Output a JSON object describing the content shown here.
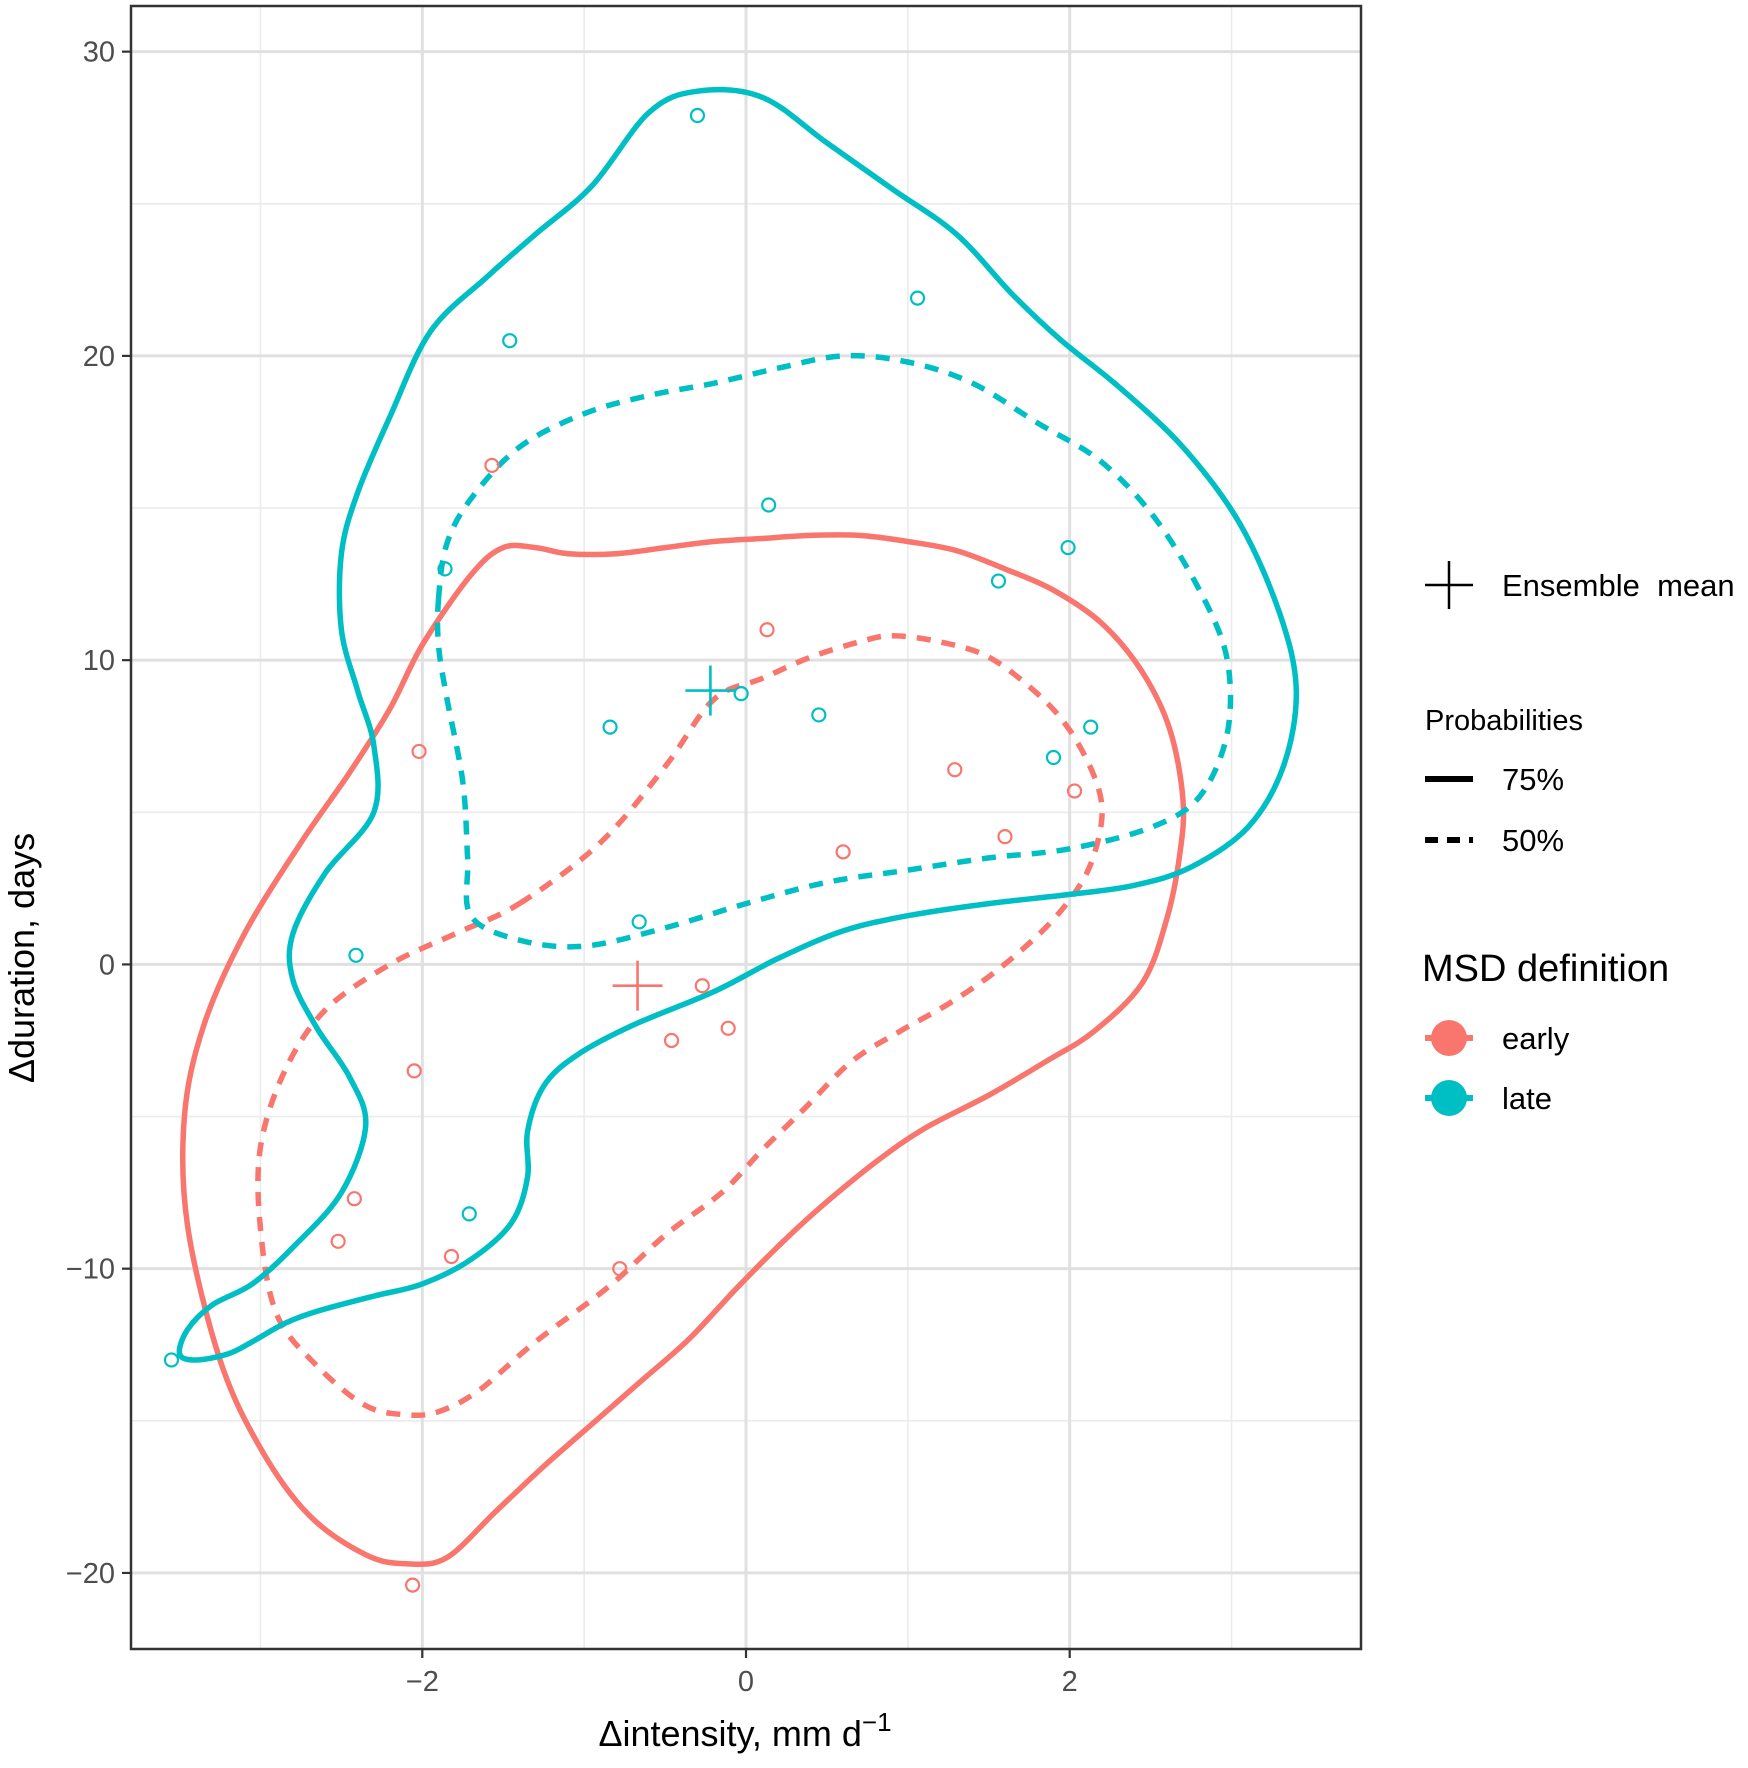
{
  "chart_data": {
    "type": "scatter",
    "xlabel": "Δintensity, mm d",
    "xlabel_sup": "−1",
    "ylabel": "Δduration, days",
    "xlim": [
      -3.8,
      3.8
    ],
    "ylim": [
      -22.5,
      31.5
    ],
    "x_major_ticks": [
      {
        "value": -2,
        "label": "−2"
      },
      {
        "value": 0,
        "label": "0"
      },
      {
        "value": 2,
        "label": "2"
      }
    ],
    "x_minor_ticks": [
      -3,
      -1,
      1,
      3
    ],
    "y_major_ticks": [
      {
        "value": -20,
        "label": "−20"
      },
      {
        "value": -10,
        "label": "−10"
      },
      {
        "value": 0,
        "label": "0"
      },
      {
        "value": 10,
        "label": "10"
      },
      {
        "value": 20,
        "label": "20"
      },
      {
        "value": 30,
        "label": "30"
      }
    ],
    "y_minor_ticks": [
      -15,
      -5,
      5,
      15,
      25
    ],
    "grid": true,
    "legend_position": "right",
    "colors": {
      "early": "#F8766D",
      "late": "#00BFC4"
    },
    "legend": {
      "mean_label": "Ensemble  mean",
      "probabilities_title": "Probabilities",
      "probabilities": [
        {
          "label": "75%",
          "style": "solid"
        },
        {
          "label": "50%",
          "style": "dashed"
        }
      ],
      "group_title": "MSD definition",
      "groups": [
        {
          "label": "early",
          "color": "#F8766D"
        },
        {
          "label": "late",
          "color": "#00BFC4"
        }
      ]
    },
    "series": [
      {
        "name": "early",
        "color": "#F8766D",
        "points": [
          [
            -1.57,
            16.4
          ],
          [
            0.13,
            11.0
          ],
          [
            -2.02,
            7.0
          ],
          [
            1.29,
            6.4
          ],
          [
            2.03,
            5.7
          ],
          [
            1.6,
            4.2
          ],
          [
            0.6,
            3.7
          ],
          [
            -0.27,
            -0.7
          ],
          [
            -0.46,
            -2.5
          ],
          [
            -0.11,
            -2.1
          ],
          [
            -2.05,
            -3.5
          ],
          [
            -2.42,
            -7.7
          ],
          [
            -2.52,
            -9.1
          ],
          [
            -1.82,
            -9.6
          ],
          [
            -0.78,
            -10.0
          ],
          [
            -2.06,
            -20.4
          ]
        ],
        "mean": [
          -0.67,
          -0.7
        ],
        "contour_75": [
          [
            -2.0,
            10.5
          ],
          [
            -1.7,
            12.8
          ],
          [
            -1.5,
            13.7
          ],
          [
            -1.3,
            13.7
          ],
          [
            -1.1,
            13.5
          ],
          [
            -0.8,
            13.5
          ],
          [
            -0.5,
            13.7
          ],
          [
            -0.2,
            13.9
          ],
          [
            0.1,
            14.0
          ],
          [
            0.4,
            14.1
          ],
          [
            0.7,
            14.1
          ],
          [
            1.0,
            13.9
          ],
          [
            1.3,
            13.6
          ],
          [
            1.6,
            13.0
          ],
          [
            1.9,
            12.3
          ],
          [
            2.2,
            11.2
          ],
          [
            2.45,
            9.6
          ],
          [
            2.62,
            7.7
          ],
          [
            2.7,
            5.4
          ],
          [
            2.68,
            3.6
          ],
          [
            2.6,
            1.5
          ],
          [
            2.45,
            -0.6
          ],
          [
            2.15,
            -2.2
          ],
          [
            1.85,
            -3.2
          ],
          [
            1.5,
            -4.3
          ],
          [
            1.1,
            -5.4
          ],
          [
            0.8,
            -6.5
          ],
          [
            0.5,
            -7.8
          ],
          [
            0.25,
            -9.0
          ],
          [
            -0.05,
            -10.6
          ],
          [
            -0.35,
            -12.3
          ],
          [
            -0.65,
            -13.7
          ],
          [
            -0.95,
            -15.1
          ],
          [
            -1.25,
            -16.5
          ],
          [
            -1.55,
            -18.0
          ],
          [
            -1.85,
            -19.5
          ],
          [
            -2.1,
            -19.7
          ],
          [
            -2.35,
            -19.4
          ],
          [
            -2.7,
            -18.1
          ],
          [
            -3.0,
            -15.9
          ],
          [
            -3.25,
            -13.0
          ],
          [
            -3.45,
            -8.6
          ],
          [
            -3.47,
            -5.0
          ],
          [
            -3.35,
            -2.0
          ],
          [
            -3.1,
            1.0
          ],
          [
            -2.75,
            4.0
          ],
          [
            -2.45,
            6.3
          ],
          [
            -2.2,
            8.4
          ],
          [
            -2.0,
            10.5
          ]
        ],
        "contour_50": [
          [
            -1.4,
            2.0
          ],
          [
            -0.9,
            4.0
          ],
          [
            -0.5,
            6.5
          ],
          [
            -0.2,
            8.7
          ],
          [
            0.1,
            9.4
          ],
          [
            0.4,
            10.1
          ],
          [
            0.7,
            10.6
          ],
          [
            0.9,
            10.8
          ],
          [
            1.2,
            10.6
          ],
          [
            1.5,
            10.1
          ],
          [
            1.8,
            8.9
          ],
          [
            2.0,
            7.7
          ],
          [
            2.15,
            6.2
          ],
          [
            2.2,
            5.0
          ],
          [
            2.15,
            3.6
          ],
          [
            2.05,
            2.5
          ],
          [
            1.85,
            1.2
          ],
          [
            1.55,
            -0.2
          ],
          [
            1.25,
            -1.3
          ],
          [
            0.95,
            -2.2
          ],
          [
            0.65,
            -3.2
          ],
          [
            0.35,
            -4.8
          ],
          [
            0.1,
            -6.1
          ],
          [
            -0.15,
            -7.5
          ],
          [
            -0.5,
            -8.9
          ],
          [
            -0.85,
            -10.6
          ],
          [
            -1.3,
            -12.4
          ],
          [
            -1.65,
            -14.0
          ],
          [
            -1.9,
            -14.7
          ],
          [
            -2.1,
            -14.8
          ],
          [
            -2.35,
            -14.5
          ],
          [
            -2.65,
            -13.2
          ],
          [
            -2.9,
            -11.5
          ],
          [
            -3.0,
            -8.7
          ],
          [
            -3.0,
            -6.0
          ],
          [
            -2.85,
            -3.5
          ],
          [
            -2.6,
            -1.5
          ],
          [
            -2.2,
            0.0
          ],
          [
            -1.8,
            1.0
          ],
          [
            -1.4,
            2.0
          ]
        ]
      },
      {
        "name": "late",
        "color": "#00BFC4",
        "points": [
          [
            -0.3,
            27.9
          ],
          [
            1.06,
            21.9
          ],
          [
            -1.46,
            20.5
          ],
          [
            0.14,
            15.1
          ],
          [
            1.99,
            13.7
          ],
          [
            -1.86,
            13.0
          ],
          [
            1.56,
            12.6
          ],
          [
            -0.03,
            8.9
          ],
          [
            0.45,
            8.2
          ],
          [
            -0.84,
            7.8
          ],
          [
            2.13,
            7.8
          ],
          [
            1.9,
            6.8
          ],
          [
            -0.66,
            1.4
          ],
          [
            -2.41,
            0.3
          ],
          [
            -1.71,
            -8.2
          ],
          [
            -3.55,
            -13.0
          ]
        ],
        "mean": [
          -0.22,
          9.0
        ],
        "contour_75": [
          [
            -0.6,
            28.0
          ],
          [
            -0.3,
            28.7
          ],
          [
            0.1,
            28.5
          ],
          [
            0.5,
            27.0
          ],
          [
            0.9,
            25.5
          ],
          [
            1.3,
            24.0
          ],
          [
            1.65,
            22.0
          ],
          [
            1.95,
            20.5
          ],
          [
            2.3,
            19.0
          ],
          [
            2.7,
            17.0
          ],
          [
            3.05,
            14.5
          ],
          [
            3.3,
            11.5
          ],
          [
            3.4,
            9.0
          ],
          [
            3.32,
            6.5
          ],
          [
            3.1,
            4.5
          ],
          [
            2.75,
            3.2
          ],
          [
            2.4,
            2.6
          ],
          [
            2.0,
            2.3
          ],
          [
            1.5,
            2.0
          ],
          [
            1.0,
            1.6
          ],
          [
            0.6,
            1.1
          ],
          [
            0.2,
            0.2
          ],
          [
            -0.2,
            -0.9
          ],
          [
            -0.7,
            -2.0
          ],
          [
            -1.05,
            -3.0
          ],
          [
            -1.25,
            -4.0
          ],
          [
            -1.35,
            -5.5
          ],
          [
            -1.35,
            -7.0
          ],
          [
            -1.45,
            -8.5
          ],
          [
            -1.7,
            -9.7
          ],
          [
            -2.0,
            -10.5
          ],
          [
            -2.3,
            -10.9
          ],
          [
            -2.65,
            -11.4
          ],
          [
            -2.85,
            -11.8
          ],
          [
            -3.05,
            -12.4
          ],
          [
            -3.2,
            -12.8
          ],
          [
            -3.4,
            -13.0
          ],
          [
            -3.5,
            -12.8
          ],
          [
            -3.45,
            -12.0
          ],
          [
            -3.3,
            -11.2
          ],
          [
            -3.05,
            -10.5
          ],
          [
            -2.8,
            -9.3
          ],
          [
            -2.5,
            -7.5
          ],
          [
            -2.35,
            -5.3
          ],
          [
            -2.45,
            -3.7
          ],
          [
            -2.65,
            -2.1
          ],
          [
            -2.8,
            -0.5
          ],
          [
            -2.8,
            1.0
          ],
          [
            -2.6,
            3.0
          ],
          [
            -2.3,
            5.0
          ],
          [
            -2.3,
            7.2
          ],
          [
            -2.4,
            9.0
          ],
          [
            -2.5,
            11.0
          ],
          [
            -2.5,
            13.5
          ],
          [
            -2.4,
            15.5
          ],
          [
            -2.2,
            18.0
          ],
          [
            -1.95,
            20.8
          ],
          [
            -1.6,
            22.6
          ],
          [
            -1.3,
            24.0
          ],
          [
            -0.95,
            25.6
          ],
          [
            -0.6,
            28.0
          ]
        ],
        "contour_50": [
          [
            -1.9,
            12.0
          ],
          [
            -1.85,
            13.8
          ],
          [
            -1.7,
            15.3
          ],
          [
            -1.4,
            17.0
          ],
          [
            -1.0,
            18.1
          ],
          [
            -0.6,
            18.7
          ],
          [
            -0.2,
            19.1
          ],
          [
            0.2,
            19.6
          ],
          [
            0.6,
            20.0
          ],
          [
            1.0,
            19.8
          ],
          [
            1.4,
            19.1
          ],
          [
            1.8,
            17.8
          ],
          [
            2.2,
            16.5
          ],
          [
            2.55,
            14.5
          ],
          [
            2.85,
            11.8
          ],
          [
            2.98,
            9.8
          ],
          [
            2.97,
            7.5
          ],
          [
            2.8,
            5.5
          ],
          [
            2.5,
            4.5
          ],
          [
            2.0,
            3.8
          ],
          [
            1.5,
            3.5
          ],
          [
            1.0,
            3.1
          ],
          [
            0.5,
            2.7
          ],
          [
            0.0,
            2.0
          ],
          [
            -0.5,
            1.2
          ],
          [
            -1.0,
            0.6
          ],
          [
            -1.4,
            0.8
          ],
          [
            -1.7,
            1.6
          ],
          [
            -1.72,
            3.5
          ],
          [
            -1.75,
            6.0
          ],
          [
            -1.85,
            8.8
          ],
          [
            -1.9,
            10.5
          ],
          [
            -1.9,
            12.0
          ]
        ]
      }
    ]
  }
}
